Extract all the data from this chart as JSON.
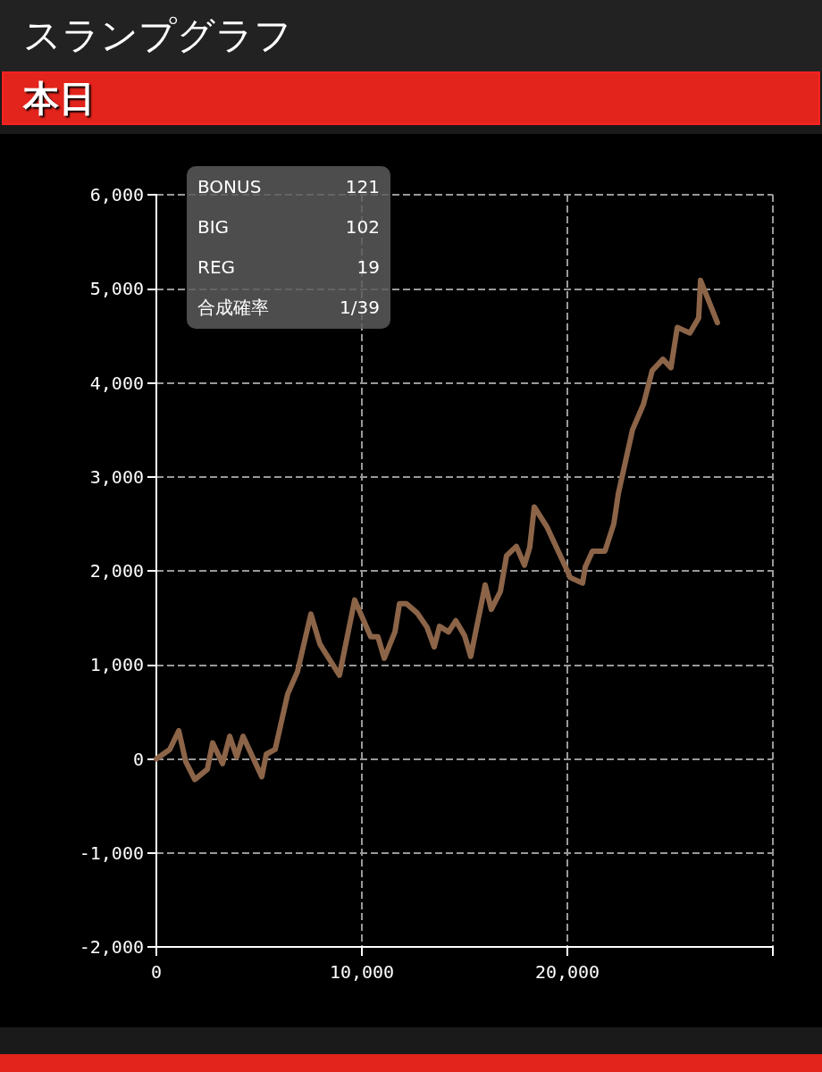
{
  "chart_data": {
    "type": "line",
    "title": "スランプグラフ",
    "subtitle": "本日",
    "annotations": [
      "BONUS",
      "121",
      "BIG",
      "102",
      "REG",
      "19",
      "合成確率",
      "1/39"
    ],
    "x": [
      0,
      650,
      1090,
      1430,
      1870,
      2480,
      2740,
      3220,
      3570,
      3910,
      4220,
      5130,
      5350,
      5780,
      6390,
      6870,
      7520,
      7960,
      8910,
      9650,
      10430,
      10780,
      11090,
      11610,
      11830,
      12170,
      12700,
      13170,
      13520,
      13780,
      14220,
      14570,
      15000,
      15300,
      16000,
      16300,
      16740,
      17040,
      17520,
      17910,
      18170,
      18390,
      19000,
      20000,
      20130,
      20740,
      20870,
      21220,
      21830,
      22260,
      22480,
      23170,
      23700,
      24130,
      24650,
      25040,
      25350,
      25960,
      26390,
      26480,
      27300
    ],
    "series": [
      {
        "color": "#8c6448",
        "values": [
          0,
          100,
          300,
          -30,
          -220,
          -110,
          170,
          -50,
          240,
          20,
          240,
          -190,
          50,
          100,
          690,
          930,
          1540,
          1220,
          890,
          1690,
          1300,
          1300,
          1070,
          1350,
          1650,
          1650,
          1550,
          1400,
          1190,
          1410,
          1350,
          1470,
          1310,
          1090,
          1850,
          1590,
          1780,
          2160,
          2260,
          2060,
          2250,
          2680,
          2470,
          2000,
          1930,
          1870,
          2040,
          2210,
          2210,
          2500,
          2820,
          3500,
          3770,
          4130,
          4250,
          4160,
          4590,
          4530,
          4690,
          5090,
          4640
        ]
      }
    ],
    "xlim": [
      0,
      30000
    ],
    "xticks": [
      0,
      {
        "value": 10000,
        "label": "10,000"
      },
      {
        "value": 20000,
        "label": "20,000"
      },
      {
        "value": 30000,
        "label": null
      }
    ],
    "ylim": [
      -2000,
      6000
    ],
    "yticks": [
      {
        "value": -2000,
        "label": "-2,000"
      },
      {
        "value": -1000,
        "label": "-1,000"
      },
      0,
      {
        "value": 1000,
        "label": "1,000"
      },
      {
        "value": 2000,
        "label": "2,000"
      },
      {
        "value": 3000,
        "label": "3,000"
      },
      {
        "value": 4000,
        "label": "4,000"
      },
      {
        "value": 5000,
        "label": "5,000"
      },
      {
        "value": 6000,
        "label": "6,000"
      }
    ],
    "grid": true,
    "marker": "none",
    "line_style": "solid"
  }
}
